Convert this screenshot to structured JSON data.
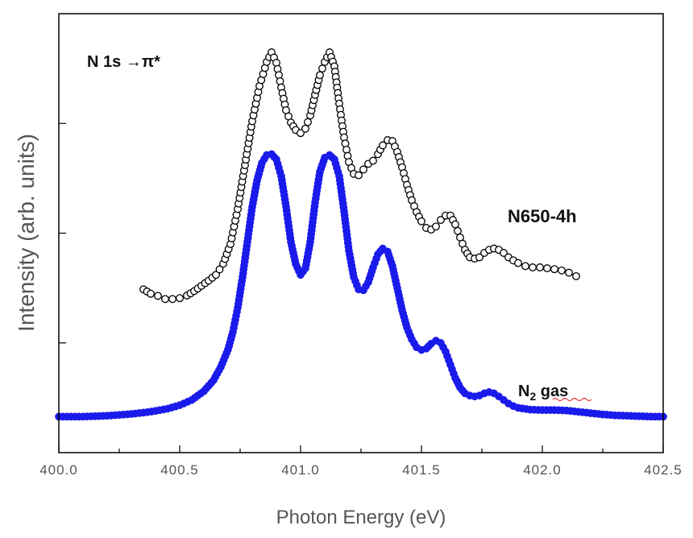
{
  "chart_data": {
    "type": "scatter",
    "title": "",
    "xlabel": "Photon Energy (eV)",
    "ylabel": "Intensity (arb. units)",
    "xlim": [
      400.0,
      402.5
    ],
    "ylim": [
      0,
      1
    ],
    "y_ticks_labeled": false,
    "x_tick_labels": [
      "400.0",
      "400.5",
      "401.0",
      "401.5",
      "402.0",
      "402.5"
    ],
    "annotations": {
      "transition_prefix": "N 1s ",
      "transition_arrow": "→",
      "transition_suffix": "π*",
      "sample_label": "N650-4h",
      "gas_label_main": "N",
      "gas_label_sub": "2",
      "gas_label_rest": " gas"
    },
    "series": [
      {
        "label_ref": "sample_label",
        "marker": "open-circle",
        "color": "#000000",
        "x": [
          400.35,
          400.38,
          400.41,
          400.44,
          400.47,
          400.5,
          400.53,
          400.56,
          400.59,
          400.62,
          400.65,
          400.68,
          400.71,
          400.74,
          400.77,
          400.8,
          400.83,
          400.86,
          400.88,
          400.9,
          400.92,
          400.94,
          400.96,
          400.98,
          401.0,
          401.02,
          401.04,
          401.06,
          401.08,
          401.1,
          401.12,
          401.14,
          401.16,
          401.18,
          401.2,
          401.22,
          401.24,
          401.26,
          401.28,
          401.3,
          401.32,
          401.34,
          401.36,
          401.38,
          401.4,
          401.42,
          401.44,
          401.46,
          401.48,
          401.5,
          401.52,
          401.54,
          401.56,
          401.58,
          401.6,
          401.62,
          401.64,
          401.66,
          401.68,
          401.7,
          401.72,
          401.74,
          401.76,
          401.78,
          401.8,
          401.82,
          401.84,
          401.86,
          401.88,
          401.9,
          401.93,
          401.96,
          401.99,
          402.02,
          402.05,
          402.08,
          402.11,
          402.14
        ],
        "y": [
          0.372,
          0.362,
          0.357,
          0.35,
          0.35,
          0.352,
          0.358,
          0.368,
          0.38,
          0.392,
          0.405,
          0.43,
          0.475,
          0.555,
          0.655,
          0.755,
          0.835,
          0.89,
          0.912,
          0.888,
          0.832,
          0.78,
          0.752,
          0.735,
          0.728,
          0.738,
          0.768,
          0.815,
          0.86,
          0.89,
          0.912,
          0.88,
          0.795,
          0.718,
          0.662,
          0.635,
          0.632,
          0.645,
          0.658,
          0.665,
          0.68,
          0.7,
          0.712,
          0.71,
          0.685,
          0.65,
          0.61,
          0.575,
          0.548,
          0.527,
          0.512,
          0.508,
          0.515,
          0.53,
          0.54,
          0.54,
          0.52,
          0.49,
          0.462,
          0.445,
          0.442,
          0.445,
          0.455,
          0.462,
          0.465,
          0.462,
          0.455,
          0.445,
          0.438,
          0.432,
          0.425,
          0.422,
          0.422,
          0.42,
          0.418,
          0.415,
          0.41,
          0.402
        ]
      },
      {
        "label_ref": "gas_label",
        "marker": "filled-circle",
        "color": "#1a1aeb",
        "x": [
          400.0,
          400.05,
          400.1,
          400.15,
          400.2,
          400.25,
          400.3,
          400.35,
          400.4,
          400.45,
          400.5,
          400.55,
          400.6,
          400.64,
          400.67,
          400.7,
          400.72,
          400.74,
          400.76,
          400.78,
          400.8,
          400.82,
          400.84,
          400.86,
          400.88,
          400.9,
          400.92,
          400.94,
          400.96,
          400.98,
          401.0,
          401.02,
          401.04,
          401.06,
          401.08,
          401.1,
          401.12,
          401.14,
          401.16,
          401.18,
          401.2,
          401.22,
          401.24,
          401.26,
          401.28,
          401.3,
          401.32,
          401.34,
          401.36,
          401.38,
          401.4,
          401.42,
          401.44,
          401.46,
          401.48,
          401.5,
          401.52,
          401.54,
          401.56,
          401.58,
          401.6,
          401.62,
          401.64,
          401.66,
          401.68,
          401.7,
          401.72,
          401.74,
          401.76,
          401.78,
          401.8,
          401.82,
          401.84,
          401.86,
          401.88,
          401.9,
          401.95,
          402.0,
          402.05,
          402.1,
          402.15,
          402.2,
          402.25,
          402.3,
          402.35,
          402.4,
          402.45,
          402.5
        ],
        "y": [
          0.082,
          0.082,
          0.082,
          0.083,
          0.084,
          0.086,
          0.088,
          0.091,
          0.095,
          0.1,
          0.108,
          0.12,
          0.14,
          0.165,
          0.195,
          0.235,
          0.275,
          0.33,
          0.4,
          0.48,
          0.56,
          0.62,
          0.66,
          0.678,
          0.68,
          0.668,
          0.63,
          0.56,
          0.48,
          0.43,
          0.405,
          0.42,
          0.48,
          0.57,
          0.64,
          0.672,
          0.678,
          0.668,
          0.63,
          0.55,
          0.46,
          0.4,
          0.372,
          0.37,
          0.388,
          0.422,
          0.452,
          0.465,
          0.458,
          0.425,
          0.375,
          0.325,
          0.285,
          0.258,
          0.24,
          0.234,
          0.237,
          0.248,
          0.255,
          0.25,
          0.23,
          0.2,
          0.17,
          0.148,
          0.135,
          0.13,
          0.128,
          0.13,
          0.135,
          0.138,
          0.135,
          0.128,
          0.12,
          0.112,
          0.106,
          0.102,
          0.098,
          0.097,
          0.097,
          0.096,
          0.093,
          0.09,
          0.087,
          0.085,
          0.084,
          0.083,
          0.082,
          0.082
        ]
      }
    ]
  }
}
